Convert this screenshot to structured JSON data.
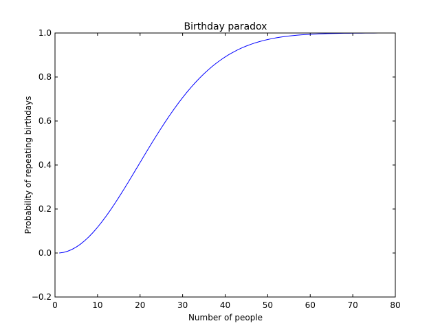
{
  "chart_data": {
    "type": "line",
    "title": "Birthday paradox",
    "xlabel": "Number of people",
    "ylabel": "Probability of repeating birthdays",
    "xlim": [
      0,
      80
    ],
    "ylim": [
      -0.2,
      1.0
    ],
    "xticks": [
      0,
      10,
      20,
      30,
      40,
      50,
      60,
      70,
      80
    ],
    "xtick_labels": [
      "0",
      "10",
      "20",
      "30",
      "40",
      "50",
      "60",
      "70",
      "80"
    ],
    "yticks": [
      -0.2,
      0.0,
      0.2,
      0.4,
      0.6,
      0.8,
      1.0
    ],
    "ytick_labels": [
      "−0.2",
      "0.0",
      "0.2",
      "0.4",
      "0.6",
      "0.8",
      "1.0"
    ],
    "grid": false,
    "series": [
      {
        "color": "#0000ff",
        "x": [
          1,
          2,
          3,
          4,
          5,
          6,
          7,
          8,
          9,
          10,
          11,
          12,
          13,
          14,
          15,
          16,
          17,
          18,
          19,
          20,
          21,
          22,
          23,
          24,
          25,
          26,
          27,
          28,
          29,
          30,
          31,
          32,
          33,
          34,
          35,
          36,
          37,
          38,
          39,
          40,
          41,
          42,
          43,
          44,
          45,
          46,
          47,
          48,
          49,
          50,
          51,
          52,
          53,
          54,
          55,
          56,
          57,
          58,
          59,
          60,
          61,
          62,
          63,
          64,
          65,
          66,
          67,
          68,
          69,
          70,
          71,
          72,
          73,
          74,
          75,
          76,
          77,
          78,
          79,
          80
        ],
        "y": [
          0.0,
          0.0027,
          0.0082,
          0.0164,
          0.0271,
          0.0405,
          0.0562,
          0.0743,
          0.0946,
          0.1169,
          0.1411,
          0.167,
          0.1944,
          0.2231,
          0.2529,
          0.2836,
          0.315,
          0.3469,
          0.3791,
          0.4114,
          0.4437,
          0.4757,
          0.5073,
          0.5383,
          0.5687,
          0.5982,
          0.6269,
          0.6545,
          0.681,
          0.7063,
          0.7305,
          0.7533,
          0.775,
          0.7953,
          0.8144,
          0.8322,
          0.8487,
          0.8641,
          0.8782,
          0.8912,
          0.9032,
          0.914,
          0.9239,
          0.9329,
          0.941,
          0.9483,
          0.9548,
          0.9606,
          0.9658,
          0.9704,
          0.9744,
          0.978,
          0.9811,
          0.9839,
          0.9863,
          0.9883,
          0.9901,
          0.9917,
          0.993,
          0.9941,
          0.9951,
          0.9959,
          0.9966,
          0.9972,
          0.9977,
          0.9981,
          0.9984,
          0.9987,
          0.9989,
          0.9991,
          0.9993,
          0.9994,
          0.9995,
          0.9996,
          0.9997,
          0.9998,
          0.9998,
          0.9999,
          0.9999,
          0.9999
        ]
      }
    ]
  }
}
